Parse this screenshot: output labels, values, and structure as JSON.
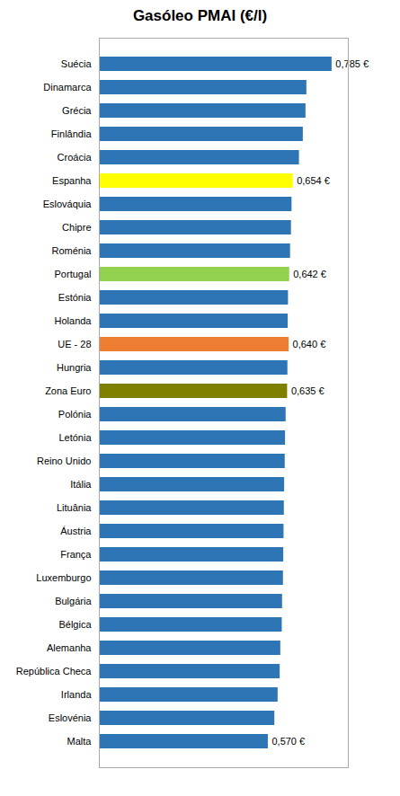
{
  "chart_data": {
    "type": "bar",
    "orientation": "horizontal",
    "title": "Gasóleo PMAI (€/l)",
    "categories": [
      "Suécia",
      "Dinamarca",
      "Grécia",
      "Finlândia",
      "Croácia",
      "Espanha",
      "Eslováquia",
      "Chipre",
      "Roménia",
      "Portugal",
      "Estónia",
      "Holanda",
      "UE - 28",
      "Hungria",
      "Zona Euro",
      "Polónia",
      "Letónia",
      "Reino Unido",
      "Itália",
      "Lituânia",
      "Áustria",
      "França",
      "Luxemburgo",
      "Bulgária",
      "Bélgica",
      "Alemanha",
      "República Checa",
      "Irlanda",
      "Eslovénia",
      "Malta"
    ],
    "values": [
      0.785,
      0.7,
      0.697,
      0.688,
      0.675,
      0.654,
      0.65,
      0.648,
      0.645,
      0.642,
      0.638,
      0.637,
      0.64,
      0.636,
      0.635,
      0.63,
      0.628,
      0.627,
      0.625,
      0.624,
      0.623,
      0.622,
      0.621,
      0.618,
      0.617,
      0.612,
      0.61,
      0.603,
      0.592,
      0.57
    ],
    "colors": [
      "#2E75B6",
      "#2E75B6",
      "#2E75B6",
      "#2E75B6",
      "#2E75B6",
      "#FFFF00",
      "#2E75B6",
      "#2E75B6",
      "#2E75B6",
      "#92D050",
      "#2E75B6",
      "#2E75B6",
      "#ED7D31",
      "#2E75B6",
      "#7F7F00",
      "#2E75B6",
      "#2E75B6",
      "#2E75B6",
      "#2E75B6",
      "#2E75B6",
      "#2E75B6",
      "#2E75B6",
      "#2E75B6",
      "#2E75B6",
      "#2E75B6",
      "#2E75B6",
      "#2E75B6",
      "#2E75B6",
      "#2E75B6",
      "#2E75B6"
    ],
    "data_labels": true,
    "value_labels": [
      "0,785 €",
      null,
      null,
      null,
      null,
      "0,654 €",
      null,
      null,
      null,
      "0,642 €",
      null,
      null,
      "0,640 €",
      null,
      "0,635 €",
      null,
      null,
      null,
      null,
      null,
      null,
      null,
      null,
      null,
      null,
      null,
      null,
      null,
      null,
      "0,570 €"
    ],
    "xlim": [
      0.0,
      0.84
    ],
    "tick_labels": "y",
    "grid": false
  }
}
